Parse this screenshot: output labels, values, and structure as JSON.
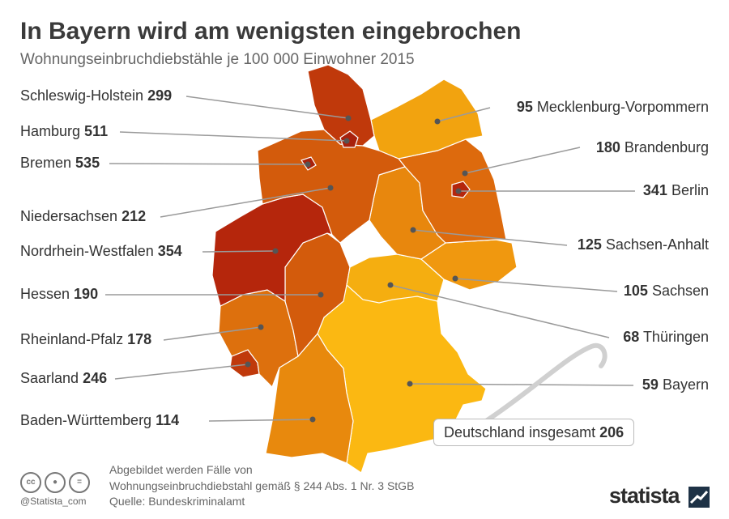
{
  "title": "In Bayern wird am wenigsten eingebrochen",
  "subtitle": "Wohnungseinbruchdiebstähle je 100 000 Einwohner 2015",
  "states": [
    {
      "id": "sh",
      "name": "Schleswig-Holstein",
      "value": "299",
      "color": "#c0390b"
    },
    {
      "id": "hh",
      "name": "Hamburg",
      "value": "511",
      "color": "#a8210c"
    },
    {
      "id": "hb",
      "name": "Bremen",
      "value": "535",
      "color": "#a8210c"
    },
    {
      "id": "ni",
      "name": "Niedersachsen",
      "value": "212",
      "color": "#d35b0c"
    },
    {
      "id": "nw",
      "name": "Nordrhein-Westfalen",
      "value": "354",
      "color": "#b5260c"
    },
    {
      "id": "he",
      "name": "Hessen",
      "value": "190",
      "color": "#d35b0c"
    },
    {
      "id": "rp",
      "name": "Rheinland-Pfalz",
      "value": "178",
      "color": "#dd700d"
    },
    {
      "id": "sl",
      "name": "Saarland",
      "value": "246",
      "color": "#c0390b"
    },
    {
      "id": "bw",
      "name": "Baden-Württemberg",
      "value": "114",
      "color": "#e8890d"
    },
    {
      "id": "mv",
      "name": "Mecklenburg-Vorpommern",
      "value": "95",
      "color": "#f2a30f"
    },
    {
      "id": "bb",
      "name": "Brandenburg",
      "value": "180",
      "color": "#dd6a0d"
    },
    {
      "id": "be",
      "name": "Berlin",
      "value": "341",
      "color": "#b5260c"
    },
    {
      "id": "st",
      "name": "Sachsen-Anhalt",
      "value": "125",
      "color": "#e8870d"
    },
    {
      "id": "sn",
      "name": "Sachsen",
      "value": "105",
      "color": "#f0980f"
    },
    {
      "id": "th",
      "name": "Thüringen",
      "value": "68",
      "color": "#f5ae10"
    },
    {
      "id": "by",
      "name": "Bayern",
      "value": "59",
      "color": "#fbb812"
    }
  ],
  "total": {
    "label": "Deutschland insgesamt",
    "value": "206"
  },
  "footer": {
    "note_line1": "Abgebildet werden Fälle von",
    "note_line2": "Wohnungseinbruchdiebstahl gemäß § 244 Abs. 1 Nr. 3 StGB",
    "source": "Quelle: Bundeskriminalamt",
    "handle": "@Statista_com",
    "brand": "statista",
    "license_icons": [
      "cc-icon",
      "by-icon",
      "nd-icon"
    ]
  }
}
